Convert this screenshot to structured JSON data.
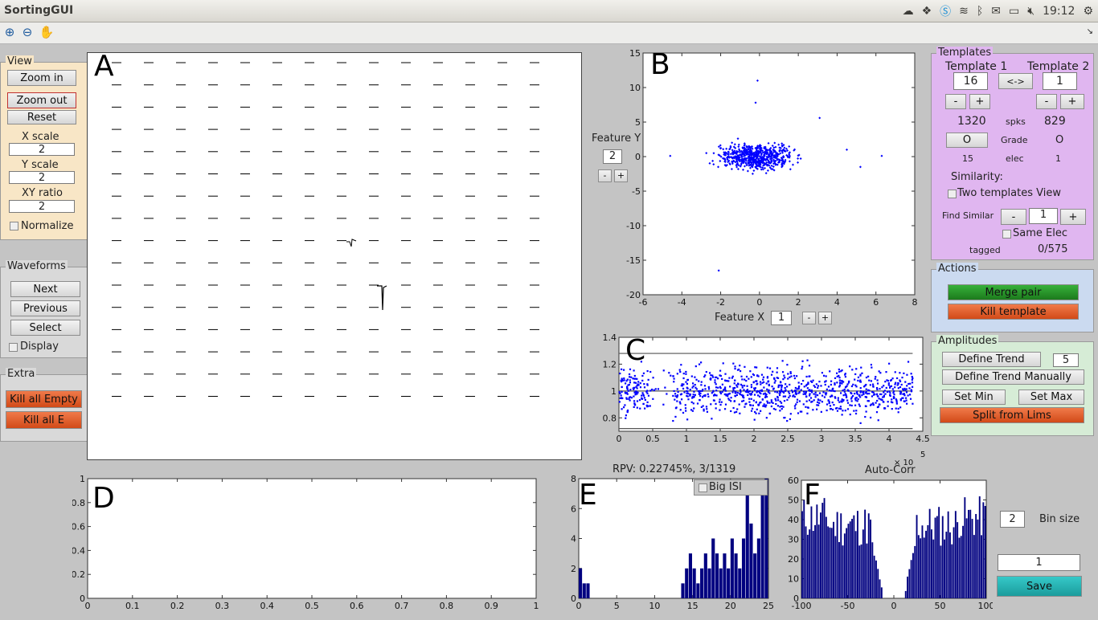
{
  "window": {
    "title": "SortingGUI",
    "clock": "19:12"
  },
  "toolbar": {
    "zoom_in": "zoom-in-icon",
    "zoom_out": "zoom-out-icon",
    "pan": "pan-icon"
  },
  "view": {
    "title": "View",
    "zoom_in": "Zoom in",
    "zoom_out": "Zoom out",
    "reset": "Reset",
    "x_scale_label": "X scale",
    "x_scale_value": "2",
    "y_scale_label": "Y scale",
    "y_scale_value": "2",
    "xy_ratio_label": "XY ratio",
    "xy_ratio_value": "2",
    "normalize": "Normalize"
  },
  "waveforms": {
    "title": "Waveforms",
    "next": "Next",
    "previous": "Previous",
    "select": "Select",
    "display": "Display"
  },
  "extra": {
    "title": "Extra",
    "kill_all_empty": "Kill all Empty",
    "kill_all_e": "Kill all E"
  },
  "plot_letters": {
    "a": "A",
    "b": "B",
    "c": "C",
    "d": "D",
    "e": "E",
    "f": "F"
  },
  "feature": {
    "y_label": "Feature Y",
    "y_value": "2",
    "x_label": "Feature X",
    "x_value": "1",
    "minus": "-",
    "plus": "+"
  },
  "templates": {
    "title": "Templates",
    "t1_label": "Template 1",
    "t2_label": "Template 2",
    "t1_value": "16",
    "t2_value": "1",
    "swap": "<->",
    "minus": "-",
    "plus": "+",
    "t1_spks": "1320",
    "spks_label": "spks",
    "t2_spks": "829",
    "t1_grade": "O",
    "grade_label": "Grade",
    "t2_grade": "O",
    "t1_elec": "15",
    "elec_label": "elec",
    "t2_elec": "1",
    "similarity": "Similarity:",
    "two_view": "Two templates View",
    "find_similar": "Find Similar",
    "find_value": "1",
    "same_elec": "Same Elec",
    "tagged_label": "tagged",
    "tagged_value": "0/575"
  },
  "actions": {
    "title": "Actions",
    "merge": "Merge pair",
    "kill": "Kill template"
  },
  "amplitudes": {
    "title": "Amplitudes",
    "define_trend": "Define Trend",
    "trend_value": "5",
    "define_manual": "Define Trend Manually",
    "set_min": "Set Min",
    "set_max": "Set Max",
    "split": "Split from Lims"
  },
  "isi": {
    "rpv": "RPV: 0.22745%, 3/1319",
    "big_isi": "Big ISI"
  },
  "autocorr": {
    "title": "Auto-Corr",
    "bin_value": "2",
    "bin_label": "Bin size",
    "save_field": "1",
    "save": "Save"
  },
  "chart_data": [
    {
      "id": "B",
      "type": "scatter",
      "xlim": [
        -6,
        8
      ],
      "ylim": [
        -20,
        15
      ],
      "xticks": [
        -6,
        -4,
        -2,
        0,
        2,
        4,
        6,
        8
      ],
      "yticks": [
        15,
        10,
        5,
        0,
        -5,
        -10,
        -15,
        -20
      ],
      "color": "#0000ff"
    },
    {
      "id": "C",
      "type": "scatter",
      "xlim": [
        0,
        4.5
      ],
      "ylim": [
        0.7,
        1.4
      ],
      "xticks": [
        0,
        0.5,
        1,
        1.5,
        2,
        2.5,
        3,
        3.5,
        4,
        4.5
      ],
      "yticks": [
        1.4,
        1.2,
        1,
        0.8
      ],
      "x_multiplier": "× 10",
      "x_exponent": "5",
      "lines": [
        1.28,
        1.0,
        0.72
      ],
      "color": "#0000ff"
    },
    {
      "id": "D",
      "type": "line",
      "xlim": [
        0,
        1
      ],
      "ylim": [
        0,
        1
      ],
      "xticks": [
        0,
        0.1,
        0.2,
        0.3,
        0.4,
        0.5,
        0.6,
        0.7,
        0.8,
        0.9,
        1
      ],
      "yticks": [
        1,
        0.8,
        0.6,
        0.4,
        0.2,
        0
      ]
    },
    {
      "id": "E",
      "type": "bar",
      "title": "RPV: 0.22745%, 3/1319",
      "xlim": [
        0,
        25
      ],
      "ylim": [
        0,
        8
      ],
      "xticks": [
        0,
        5,
        10,
        15,
        20,
        25
      ],
      "yticks": [
        8,
        6,
        4,
        2,
        0
      ],
      "x": [
        0.25,
        0.75,
        1.25,
        13.75,
        14.25,
        14.75,
        15.25,
        15.75,
        16.25,
        16.75,
        17.25,
        17.75,
        18.25,
        18.75,
        19.25,
        19.75,
        20.25,
        20.75,
        21.25,
        21.75,
        22.25,
        22.75,
        23.25,
        23.75,
        24.25,
        24.75
      ],
      "values": [
        2,
        1,
        1,
        1,
        2,
        3,
        2,
        1,
        2,
        3,
        2,
        4,
        3,
        2,
        3,
        2,
        4,
        3,
        2,
        4,
        7,
        5,
        3,
        4,
        7,
        8
      ],
      "color": "#000080"
    },
    {
      "id": "F",
      "type": "bar",
      "title": "Auto-Corr",
      "xlim": [
        -100,
        100
      ],
      "ylim": [
        0,
        60
      ],
      "xticks": [
        -100,
        -50,
        0,
        50,
        100
      ],
      "yticks": [
        60,
        50,
        40,
        30,
        20,
        10,
        0
      ],
      "color": "#000080"
    }
  ]
}
